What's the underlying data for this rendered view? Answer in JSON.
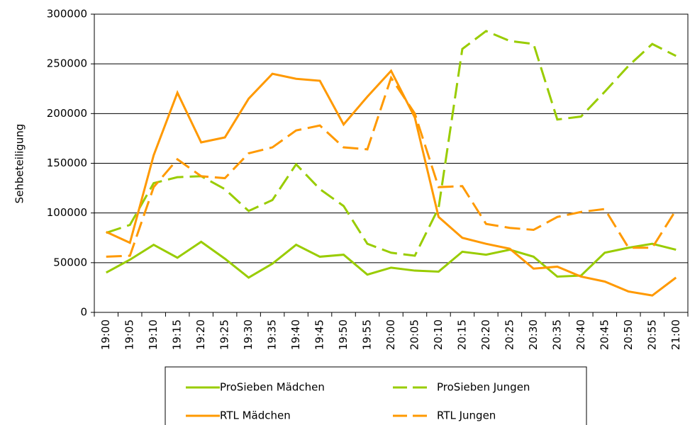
{
  "chart_data": {
    "type": "line",
    "ylabel": "Sehbeteiligung",
    "categories": [
      "19:00",
      "19:05",
      "19:10",
      "19:15",
      "19:20",
      "19:25",
      "19:30",
      "19:35",
      "19:40",
      "19:45",
      "19:50",
      "19:55",
      "20:00",
      "20:05",
      "20:10",
      "20:15",
      "20:20",
      "20:25",
      "20:30",
      "20:35",
      "20:40",
      "20:45",
      "20:50",
      "20:55",
      "21:00"
    ],
    "series": [
      {
        "name": "ProSieben Mädchen",
        "color": "#99cc00",
        "dash": false,
        "values": [
          40000,
          53000,
          68000,
          55000,
          71000,
          54000,
          35000,
          49000,
          68000,
          56000,
          58000,
          38000,
          45000,
          42000,
          41000,
          61000,
          58000,
          63000,
          56000,
          36000,
          37000,
          60000,
          65000,
          69000,
          63000
        ]
      },
      {
        "name": "ProSieben Jungen",
        "color": "#99cc00",
        "dash": true,
        "values": [
          80000,
          88000,
          130000,
          136000,
          137000,
          124000,
          102000,
          113000,
          149000,
          124000,
          107000,
          69000,
          60000,
          57000,
          105000,
          265000,
          283000,
          273000,
          270000,
          194000,
          197000,
          222000,
          248000,
          270000,
          258000
        ]
      },
      {
        "name": "RTL Mädchen",
        "color": "#ff9900",
        "dash": false,
        "values": [
          81000,
          70000,
          158000,
          221000,
          171000,
          176000,
          215000,
          240000,
          235000,
          233000,
          189000,
          217000,
          243000,
          196000,
          96000,
          75000,
          69000,
          64000,
          44000,
          46000,
          36000,
          31000,
          21000,
          17000,
          35000
        ]
      },
      {
        "name": "RTL Jungen",
        "color": "#ff9900",
        "dash": true,
        "values": [
          56000,
          57000,
          126000,
          154000,
          137000,
          135000,
          160000,
          166000,
          183000,
          188000,
          166000,
          164000,
          236000,
          200000,
          126000,
          127000,
          89000,
          85000,
          83000,
          96000,
          101000,
          104000,
          65000,
          65000,
          103000
        ]
      }
    ],
    "ylim": [
      0,
      300000
    ],
    "yticks": [
      0,
      50000,
      100000,
      150000,
      200000,
      250000,
      300000
    ],
    "grid": true
  }
}
